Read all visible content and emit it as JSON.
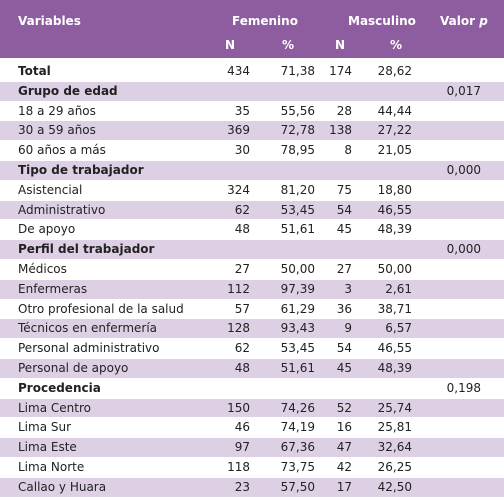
{
  "header": {
    "variables": "Variables",
    "femenino": "Femenino",
    "masculino": "Masculino",
    "valor": "Valor",
    "p": "p",
    "n_f": "N",
    "pct_f": "%",
    "n_m": "N",
    "pct_m": "%"
  },
  "rows": [
    {
      "label": "Total",
      "bold": true,
      "values": [
        "434",
        "71,38",
        "174",
        "28,62"
      ]
    },
    {
      "label": "Grupo de edad",
      "bold": true,
      "p": "0,017"
    },
    {
      "label": "18 a 29 años",
      "values": [
        "35",
        "55,56",
        "28",
        "44,44"
      ]
    },
    {
      "label": "30 a 59 años",
      "values": [
        "369",
        "72,78",
        "138",
        "27,22"
      ]
    },
    {
      "label": "60 años a más",
      "values": [
        "30",
        "78,95",
        "8",
        "21,05"
      ]
    },
    {
      "label": "Tipo de trabajador",
      "bold": true,
      "p": "0,000"
    },
    {
      "label": "Asistencial",
      "values": [
        "324",
        "81,20",
        "75",
        "18,80"
      ]
    },
    {
      "label": "Administrativo",
      "values": [
        "62",
        "53,45",
        "54",
        "46,55"
      ]
    },
    {
      "label": "De apoyo",
      "values": [
        "48",
        "51,61",
        "45",
        "48,39"
      ]
    },
    {
      "label": "Perfil del trabajador",
      "bold": true,
      "p": "0,000"
    },
    {
      "label": "Médicos",
      "values": [
        "27",
        "50,00",
        "27",
        "50,00"
      ]
    },
    {
      "label": "Enfermeras",
      "values": [
        "112",
        "97,39",
        "3",
        "2,61"
      ]
    },
    {
      "label": "Otro profesional de la salud",
      "values": [
        "57",
        "61,29",
        "36",
        "38,71"
      ]
    },
    {
      "label": "Técnicos en enfermería",
      "values": [
        "128",
        "93,43",
        "9",
        "6,57"
      ]
    },
    {
      "label": "Personal administrativo",
      "values": [
        "62",
        "53,45",
        "54",
        "46,55"
      ]
    },
    {
      "label": "Personal de apoyo",
      "values": [
        "48",
        "51,61",
        "45",
        "48,39"
      ]
    },
    {
      "label": "Procedencia",
      "bold": true,
      "p": "0,198"
    },
    {
      "label": "Lima Centro",
      "values": [
        "150",
        "74,26",
        "52",
        "25,74"
      ]
    },
    {
      "label": "Lima Sur",
      "values": [
        "46",
        "74,19",
        "16",
        "25,81"
      ]
    },
    {
      "label": "Lima Este",
      "values": [
        "97",
        "67,36",
        "47",
        "32,64"
      ]
    },
    {
      "label": "Lima Norte",
      "values": [
        "118",
        "73,75",
        "42",
        "26,25"
      ]
    },
    {
      "label": "Callao y Huara",
      "values": [
        "23",
        "57,50",
        "17",
        "42,50"
      ]
    }
  ]
}
